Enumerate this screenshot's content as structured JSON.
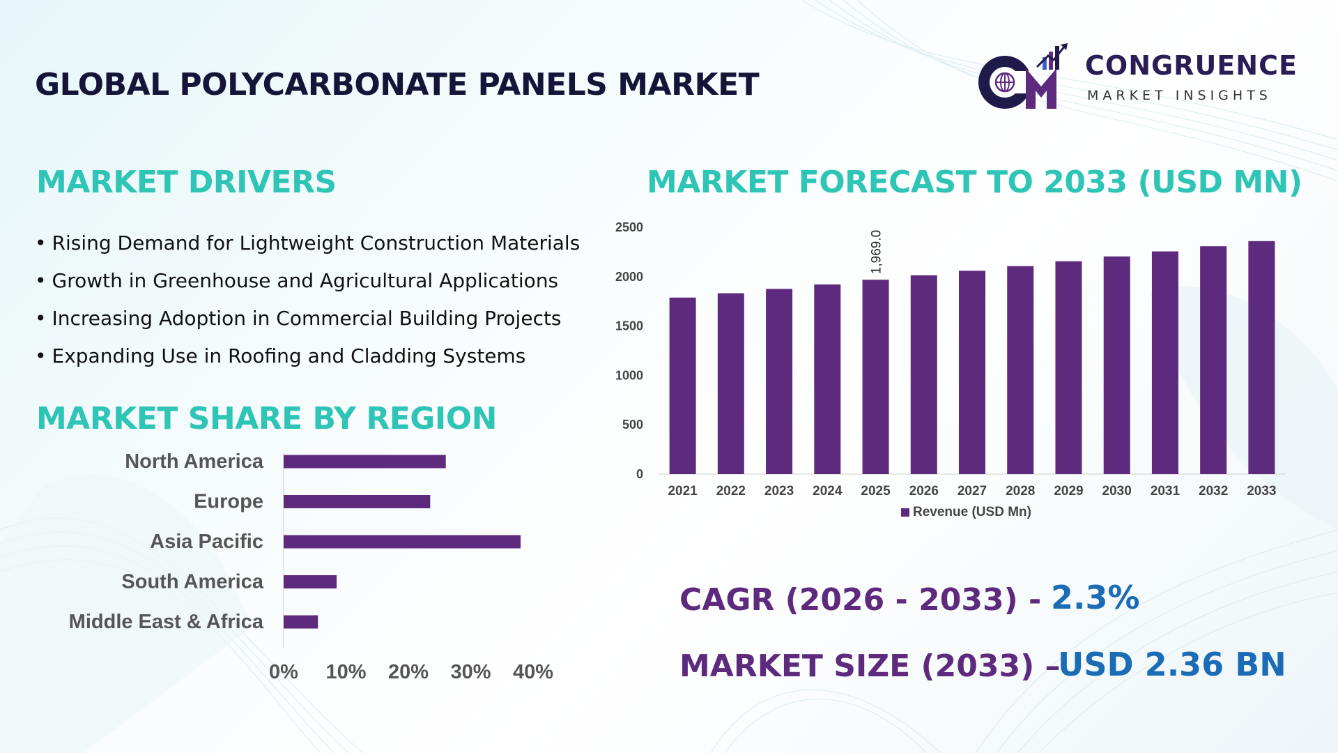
{
  "header": {
    "title": "GLOBAL POLYCARBONATE PANELS MARKET"
  },
  "logo": {
    "name": "CONGRUENCE",
    "tagline": "MARKET INSIGHTS",
    "colors": {
      "purple": "#5e2a7e",
      "navy": "#1e1b4b",
      "accent": "#3a5fd0"
    }
  },
  "drivers": {
    "title": "MARKET DRIVERS",
    "bullet": "•",
    "items": [
      "Rising Demand for Lightweight Construction Materials",
      "Growth in Greenhouse and Agricultural Applications",
      "Increasing Adoption in Commercial Building Projects",
      "Expanding Use in Roofing and Cladding Systems"
    ]
  },
  "region": {
    "title": "MARKET SHARE BY REGION"
  },
  "forecast": {
    "title": "MARKET FORECAST TO 2033 (USD MN)"
  },
  "stats": {
    "cagr_label": "CAGR (2026 - 2033) -",
    "cagr_value": "2.3%",
    "size_label": "MARKET SIZE (2033) –",
    "size_value": "USD 2.36 BN"
  },
  "colors": {
    "bar": "#5e2a7e",
    "section_title": "#2ec4b6",
    "stat_label": "#5e2a7e",
    "stat_value": "#1c6bb5",
    "title": "#15153a"
  },
  "chart_data": [
    {
      "type": "bar",
      "orientation": "horizontal",
      "title": "MARKET SHARE BY REGION",
      "categories": [
        "North America",
        "Europe",
        "Asia Pacific",
        "South America",
        "Middle East & Africa"
      ],
      "values": [
        26,
        23.5,
        38,
        8.5,
        5.5
      ],
      "xlim": [
        0,
        40
      ],
      "xticks": [
        0,
        10,
        20,
        30,
        40
      ],
      "xtick_labels": [
        "0%",
        "10%",
        "20%",
        "30%",
        "40%"
      ],
      "unit": "%",
      "grid": false,
      "legend": "none"
    },
    {
      "type": "bar",
      "title": "MARKET FORECAST TO 2033 (USD MN)",
      "categories": [
        "2021",
        "2022",
        "2023",
        "2024",
        "2025",
        "2026",
        "2027",
        "2028",
        "2029",
        "2030",
        "2031",
        "2032",
        "2033"
      ],
      "series": [
        {
          "name": "Revenue (USD Mn)",
          "values": [
            1788,
            1832,
            1876,
            1921,
            1969.0,
            2014,
            2060,
            2107,
            2156,
            2205,
            2256,
            2308,
            2360
          ]
        }
      ],
      "data_labels": [
        {
          "category": "2025",
          "text": "1,969.0"
        }
      ],
      "ylim": [
        0,
        2500
      ],
      "yticks": [
        0,
        500,
        1000,
        1500,
        2000,
        2500
      ],
      "grid": false,
      "legend": "bottom"
    }
  ]
}
